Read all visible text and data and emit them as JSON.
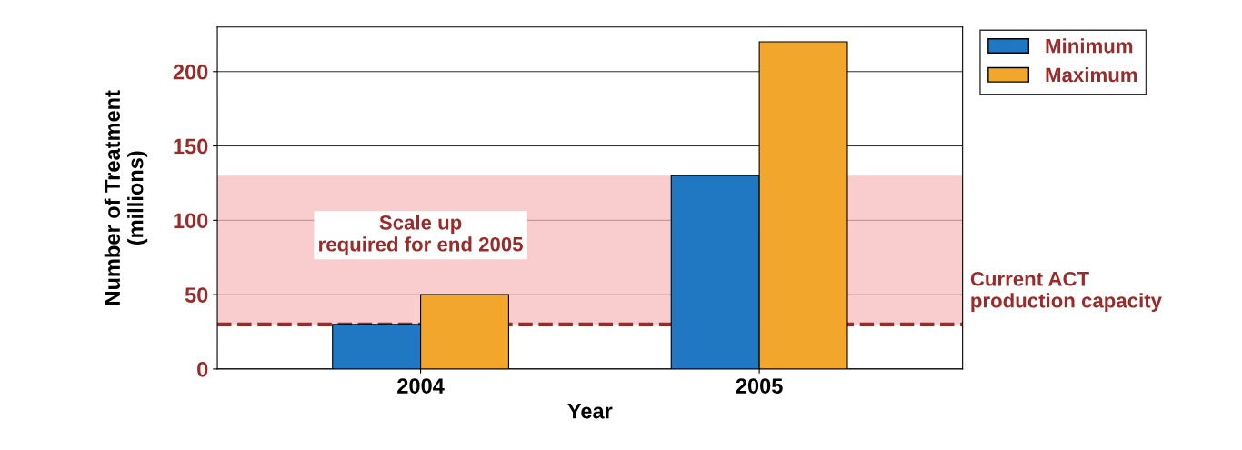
{
  "chart_data": {
    "type": "bar",
    "xlabel": "Year",
    "ylabel": "Number of Treatment\n(millions)",
    "categories": [
      "2004",
      "2005"
    ],
    "series": [
      {
        "name": "Minimum",
        "color": "#1f78c1",
        "values": [
          30,
          130
        ]
      },
      {
        "name": "Maximum",
        "color": "#f2a62b",
        "values": [
          50,
          220
        ]
      }
    ],
    "ylim": [
      0,
      230
    ],
    "yticks": [
      0,
      50,
      100,
      150,
      200
    ],
    "grid": "y",
    "legend": "top right",
    "bands": [
      {
        "axis": "y",
        "from": 30,
        "to": 130,
        "label": "Scale up\nrequired for end 2005",
        "color": "#f6b8b8"
      }
    ],
    "ref_lines": [
      {
        "axis": "y",
        "value": 30,
        "label": "Current ACT\nproduction capacity",
        "color": "#9b2a2a",
        "line_style": "dashed"
      }
    ]
  }
}
